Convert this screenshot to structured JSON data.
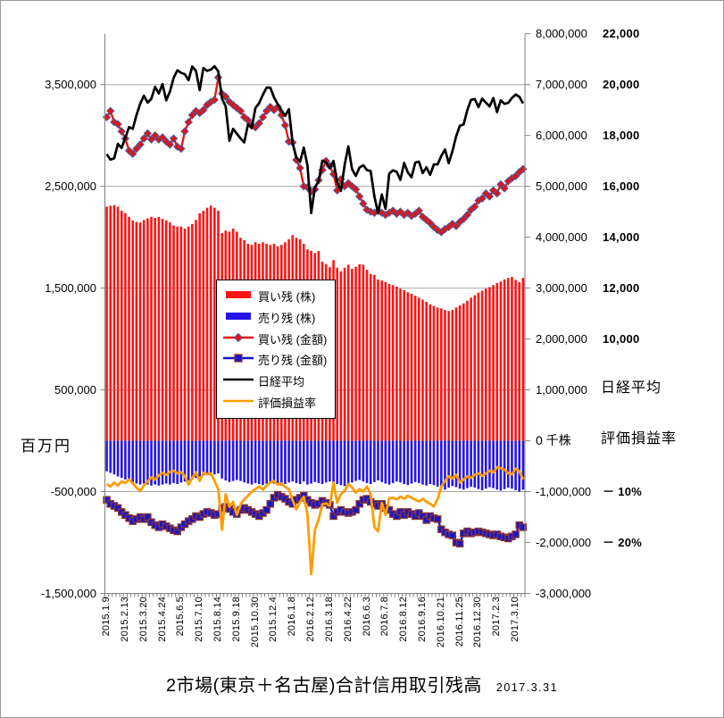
{
  "title": {
    "text": "2市場(東京＋名古屋)合計信用取引残高",
    "date": "2017.3.31"
  },
  "axis_labels": {
    "left_unit": "百万円",
    "left_ticks": [
      "3,500,000",
      "2,500,000",
      "1,500,000",
      "500,000",
      "-500,000",
      "-1,500,000"
    ],
    "left_tick_values": [
      3500000,
      2500000,
      1500000,
      500000,
      -500000,
      -1500000
    ],
    "right_ticks": [
      "8,000,000",
      "7,000,000",
      "6,000,000",
      "5,000,000",
      "4,000,000",
      "3,000,000",
      "2,000,000",
      "1,000,000",
      "0 千株",
      "-1,000,000",
      "-2,000,000",
      "-3,000,000"
    ],
    "right2_ticks": [
      "22,000",
      "20,000",
      "18,000",
      "16,000",
      "14,000",
      "12,000",
      "10,000"
    ],
    "nikkei_axis_title": "日経平均",
    "ratio_axis_title": "評価損益率",
    "pct_ticks": [
      "－ 10%",
      "－ 20%"
    ]
  },
  "legend": {
    "items": [
      {
        "label": "買い残 (株)",
        "type": "bar",
        "color": "#ff1313"
      },
      {
        "label": "売り残 (株)",
        "type": "bar",
        "color": "#2414e8"
      },
      {
        "label": "買い残 (金額)",
        "type": "line-diamond",
        "color": "#e61111"
      },
      {
        "label": "売り残 (金額)",
        "type": "line-square",
        "color": "#1414c8"
      },
      {
        "label": "日経平均",
        "type": "line",
        "color": "#000000"
      },
      {
        "label": "評価損益率",
        "type": "line",
        "color": "#ff9d00"
      }
    ]
  },
  "chart_data": {
    "type": "combo-bar-line",
    "n_points": 113,
    "x_label_every": 5,
    "x_tick_labels": [
      "2015.1.9",
      "2015.2.13",
      "2015.3.20",
      "2015.4.24",
      "2015.6.5",
      "2015.7.10",
      "2015.8.14",
      "2015.9.18",
      "2015.10.30",
      "2015.12.4",
      "2016.1.8",
      "2016.2.12",
      "2016.3.18",
      "2016.4.22",
      "2016.6.3",
      "2016.7.8",
      "2016.8.12",
      "2016.9.16",
      "2016.10.21",
      "2016.11.25",
      "2016.12.30",
      "2017.2.3",
      "2017.3.10"
    ],
    "axis_ranges": {
      "left_million_yen": [
        -1500000,
        4000000
      ],
      "right_thousand_shares": [
        -3000000,
        8000000
      ],
      "nikkei": [
        10000,
        22000
      ],
      "profit_ratio_pct_per_gridstep": -10
    },
    "grid_values_left": [
      3500000,
      2500000,
      1500000,
      500000,
      -500000
    ],
    "series": [
      {
        "name": "買い残 (株)",
        "type": "bar",
        "axis": "thousand_shares",
        "color": "#ff1313",
        "values": [
          4600000,
          4620000,
          4630000,
          4600000,
          4520000,
          4470000,
          4400000,
          4330000,
          4300000,
          4290000,
          4340000,
          4370000,
          4400000,
          4380000,
          4400000,
          4360000,
          4330000,
          4290000,
          4230000,
          4210000,
          4210000,
          4170000,
          4210000,
          4260000,
          4340000,
          4470000,
          4520000,
          4580000,
          4620000,
          4580000,
          4520000,
          4080000,
          4130000,
          4110000,
          4170000,
          4110000,
          3990000,
          3940000,
          3870000,
          3850000,
          3900000,
          3870000,
          3900000,
          3870000,
          3850000,
          3870000,
          3820000,
          3850000,
          3900000,
          3960000,
          4040000,
          3990000,
          3960000,
          3870000,
          3760000,
          3730000,
          3690000,
          3730000,
          3520000,
          3470000,
          3410000,
          3550000,
          3400000,
          3330000,
          3400000,
          3460000,
          3380000,
          3420000,
          3470000,
          3460000,
          3360000,
          3280000,
          3260000,
          3170000,
          3150000,
          3120000,
          3080000,
          3060000,
          3030000,
          2990000,
          2960000,
          2920000,
          2890000,
          2850000,
          2810000,
          2770000,
          2730000,
          2680000,
          2650000,
          2620000,
          2600000,
          2570000,
          2550000,
          2570000,
          2620000,
          2660000,
          2700000,
          2750000,
          2810000,
          2860000,
          2910000,
          2950000,
          2990000,
          3020000,
          3060000,
          3100000,
          3130000,
          3170000,
          3200000,
          3220000,
          3160000,
          3120000,
          3200000
        ]
      },
      {
        "name": "売り残 (株)",
        "type": "bar",
        "axis": "thousand_shares",
        "color": "#2414e8",
        "values": [
          -600000,
          -630000,
          -660000,
          -700000,
          -730000,
          -760000,
          -790000,
          -820000,
          -840000,
          -860000,
          -840000,
          -860000,
          -880000,
          -860000,
          -880000,
          -860000,
          -840000,
          -860000,
          -830000,
          -850000,
          -820000,
          -800000,
          -780000,
          -760000,
          -730000,
          -700000,
          -680000,
          -660000,
          -680000,
          -660000,
          -640000,
          -740000,
          -780000,
          -810000,
          -790000,
          -770000,
          -790000,
          -820000,
          -840000,
          -860000,
          -830000,
          -850000,
          -870000,
          -840000,
          -820000,
          -840000,
          -860000,
          -880000,
          -850000,
          -820000,
          -800000,
          -830000,
          -850000,
          -800000,
          -860000,
          -840000,
          -810000,
          -830000,
          -850000,
          -820000,
          -800000,
          -820000,
          -850000,
          -870000,
          -890000,
          -850000,
          -820000,
          -790000,
          -770000,
          -800000,
          -830000,
          -850000,
          -810000,
          -780000,
          -810000,
          -840000,
          -860000,
          -830000,
          -800000,
          -820000,
          -850000,
          -870000,
          -840000,
          -810000,
          -830000,
          -860000,
          -880000,
          -850000,
          -870000,
          -900000,
          -930000,
          -960000,
          -920000,
          -890000,
          -910000,
          -940000,
          -960000,
          -930000,
          -900000,
          -920000,
          -950000,
          -970000,
          -940000,
          -910000,
          -930000,
          -960000,
          -980000,
          -950000,
          -920000,
          -940000,
          -970000,
          -1000000,
          -960000
        ]
      },
      {
        "name": "買い残 (金額)",
        "type": "line",
        "marker": "diamond",
        "axis": "million_yen",
        "color": "#e61111",
        "values": [
          3180000,
          3240000,
          3130000,
          3110000,
          3040000,
          2970000,
          2850000,
          2820000,
          2870000,
          2910000,
          2970000,
          3020000,
          2960000,
          3000000,
          2960000,
          2980000,
          2940000,
          2910000,
          2970000,
          2890000,
          2870000,
          3040000,
          3130000,
          3200000,
          3240000,
          3220000,
          3250000,
          3300000,
          3330000,
          3350000,
          3570000,
          3410000,
          3380000,
          3330000,
          3300000,
          3270000,
          3240000,
          3180000,
          3150000,
          3100000,
          3080000,
          3120000,
          3180000,
          3240000,
          3280000,
          3250000,
          3280000,
          3200000,
          3100000,
          2940000,
          2930000,
          2760000,
          2680000,
          2500000,
          2490000,
          2450000,
          2470000,
          2560000,
          2660000,
          2750000,
          2700000,
          2620000,
          2460000,
          2570000,
          2500000,
          2530000,
          2500000,
          2470000,
          2400000,
          2330000,
          2270000,
          2250000,
          2240000,
          2260000,
          2240000,
          2220000,
          2240000,
          2260000,
          2230000,
          2250000,
          2220000,
          2240000,
          2210000,
          2230000,
          2260000,
          2200000,
          2170000,
          2140000,
          2100000,
          2070000,
          2050000,
          2080000,
          2100000,
          2130000,
          2110000,
          2150000,
          2180000,
          2220000,
          2270000,
          2300000,
          2360000,
          2380000,
          2430000,
          2400000,
          2460000,
          2430000,
          2520000,
          2480000,
          2550000,
          2580000,
          2600000,
          2640000,
          2670000
        ]
      },
      {
        "name": "売り残 (金額)",
        "type": "line",
        "marker": "square",
        "axis": "million_yen",
        "color": "#1414c8",
        "values": [
          -580000,
          -620000,
          -640000,
          -660000,
          -700000,
          -730000,
          -760000,
          -790000,
          -770000,
          -750000,
          -770000,
          -750000,
          -800000,
          -830000,
          -850000,
          -820000,
          -840000,
          -860000,
          -880000,
          -890000,
          -850000,
          -820000,
          -790000,
          -770000,
          -740000,
          -750000,
          -720000,
          -700000,
          -710000,
          -730000,
          -720000,
          -660000,
          -650000,
          -670000,
          -700000,
          -720000,
          -680000,
          -660000,
          -680000,
          -700000,
          -720000,
          -740000,
          -710000,
          -680000,
          -620000,
          -560000,
          -530000,
          -550000,
          -570000,
          -600000,
          -620000,
          -580000,
          -560000,
          -540000,
          -580000,
          -610000,
          -630000,
          -620000,
          -590000,
          -610000,
          -630000,
          -740000,
          -700000,
          -680000,
          -700000,
          -710000,
          -700000,
          -680000,
          -620000,
          -580000,
          -570000,
          -600000,
          -620000,
          -640000,
          -620000,
          -660000,
          -680000,
          -720000,
          -740000,
          -700000,
          -730000,
          -700000,
          -720000,
          -740000,
          -710000,
          -740000,
          -780000,
          -740000,
          -760000,
          -770000,
          -870000,
          -900000,
          -920000,
          -930000,
          -1000000,
          -1010000,
          -910000,
          -890000,
          -910000,
          -900000,
          -890000,
          -900000,
          -910000,
          -920000,
          -930000,
          -920000,
          -940000,
          -950000,
          -960000,
          -940000,
          -920000,
          -830000,
          -850000
        ]
      },
      {
        "name": "日経平均",
        "type": "line",
        "axis": "nikkei",
        "color": "#000000",
        "values": [
          17260,
          17050,
          17100,
          17670,
          17510,
          17910,
          18330,
          18260,
          18800,
          19250,
          19560,
          19290,
          19440,
          19910,
          19650,
          20020,
          19380,
          19730,
          20260,
          20560,
          20460,
          20410,
          20170,
          20710,
          20540,
          19780,
          20650,
          20540,
          20590,
          20720,
          20520,
          19440,
          19140,
          17790,
          18260,
          18070,
          17880,
          17730,
          18440,
          18290,
          19080,
          19270,
          19600,
          19880,
          19880,
          19500,
          19230,
          18990,
          18770,
          19030,
          17700,
          17150,
          16960,
          17520,
          16820,
          14950,
          15970,
          16190,
          17010,
          16940,
          16720,
          17000,
          16160,
          15820,
          16850,
          17570,
          16670,
          16410,
          16740,
          16830,
          16640,
          16600,
          15600,
          14950,
          15680,
          15110,
          16500,
          16630,
          16570,
          16250,
          16920,
          16550,
          16360,
          16930,
          16970,
          16520,
          16750,
          16450,
          16860,
          16860,
          17190,
          17450,
          16910,
          17380,
          17970,
          18380,
          18430,
          19000,
          19400,
          19430,
          19110,
          19450,
          19290,
          19140,
          19470,
          18920,
          19380,
          19240,
          19280,
          19470,
          19610,
          19520,
          19260
        ]
      },
      {
        "name": "評価損益率",
        "type": "line",
        "axis": "percent",
        "color": "#ff9d00",
        "values": [
          -8.5,
          -9.0,
          -8.2,
          -8.8,
          -8.0,
          -8.3,
          -7.6,
          -8.4,
          -9.2,
          -9.9,
          -8.8,
          -8.0,
          -7.2,
          -7.6,
          -6.8,
          -6.3,
          -6.7,
          -6.1,
          -5.9,
          -6.4,
          -6.2,
          -6.9,
          -8.6,
          -7.3,
          -6.2,
          -7.9,
          -6.3,
          -6.6,
          -6.4,
          -7.9,
          -9.5,
          -17.5,
          -10.5,
          -13.0,
          -12.0,
          -14.6,
          -12.5,
          -11.5,
          -10.8,
          -10.0,
          -9.5,
          -9.0,
          -9.6,
          -8.8,
          -8.2,
          -7.9,
          -8.6,
          -8.4,
          -9.1,
          -9.5,
          -11.7,
          -13.5,
          -12.0,
          -11.0,
          -14.5,
          -26.2,
          -17.5,
          -15.5,
          -12.5,
          -12.3,
          -12.8,
          -8.2,
          -12.2,
          -10.5,
          -9.8,
          -8.5,
          -9.2,
          -10.2,
          -9.5,
          -10.0,
          -9.0,
          -10.5,
          -17.0,
          -17.8,
          -12.2,
          -14.6,
          -11.3,
          -11.2,
          -11.5,
          -11.0,
          -11.4,
          -10.8,
          -11.2,
          -11.6,
          -11.9,
          -11.4,
          -12.0,
          -12.4,
          -12.9,
          -11.5,
          -9.0,
          -7.9,
          -7.0,
          -7.4,
          -6.7,
          -8.2,
          -7.6,
          -7.0,
          -7.3,
          -6.7,
          -6.4,
          -6.9,
          -6.4,
          -5.9,
          -6.2,
          -5.2,
          -5.4,
          -5.7,
          -6.4,
          -6.6,
          -5.5,
          -6.0,
          -7.6
        ]
      }
    ]
  }
}
